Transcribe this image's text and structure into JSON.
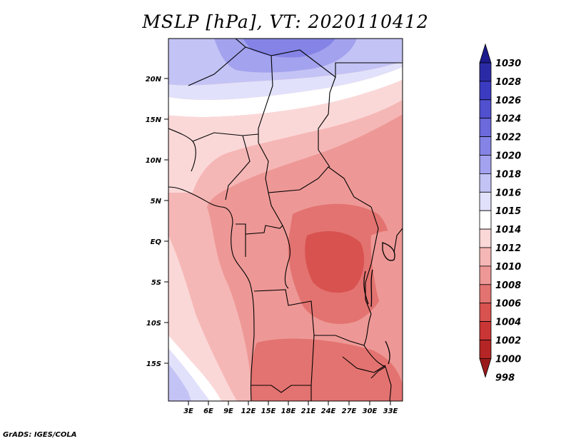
{
  "map": {
    "title": "MSLP [hPa], VT: 2020110412",
    "credit": "GrADS: IGES/COLA",
    "lat_labels": [
      "20N",
      "15N",
      "10N",
      "5N",
      "EQ",
      "5S",
      "10S",
      "15S"
    ],
    "lon_labels": [
      "3E",
      "6E",
      "9E",
      "12E",
      "15E",
      "18E",
      "21E",
      "24E",
      "27E",
      "30E",
      "33E"
    ]
  },
  "colorbar": {
    "labels": [
      "1030",
      "1028",
      "1026",
      "1024",
      "1022",
      "1020",
      "1018",
      "1016",
      "1015",
      "1014",
      "1012",
      "1010",
      "1008",
      "1006",
      "1004",
      "1002",
      "1000",
      "998"
    ],
    "colors": [
      "#1c1a8c",
      "#2b2aa6",
      "#3b3bc2",
      "#5150cf",
      "#6b69dc",
      "#8584e6",
      "#a3a2ee",
      "#c4c3f5",
      "#e1e1fb",
      "#ffffff",
      "#fbd8d8",
      "#f5b7b6",
      "#ed9896",
      "#e37370",
      "#d85250",
      "#ca3535",
      "#b52525",
      "#9a1b1b"
    ]
  }
}
